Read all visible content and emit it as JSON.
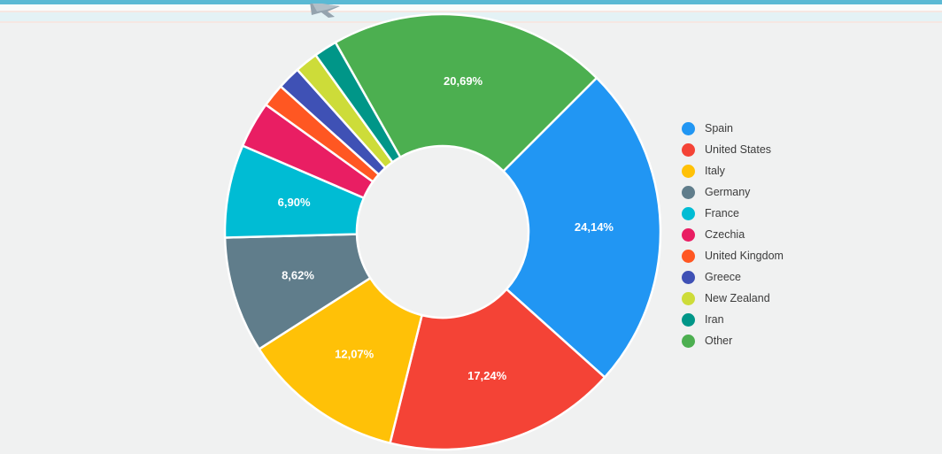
{
  "page": {
    "background": "#f0f1f1",
    "top_bar_color": "#5bb9d4"
  },
  "chart_data": {
    "type": "pie",
    "subtype": "donut",
    "title": "",
    "xlabel": "",
    "ylabel": "",
    "legend_position": "right",
    "start_angle_deg": 45,
    "label_decimal_separator": ",",
    "series": [
      {
        "label": "Spain",
        "percent": 24.14,
        "display": "24,14%",
        "color": "#2196F3"
      },
      {
        "label": "United States",
        "percent": 17.24,
        "display": "17,24%",
        "color": "#F44336"
      },
      {
        "label": "Italy",
        "percent": 12.07,
        "display": "12,07%",
        "color": "#FFC107"
      },
      {
        "label": "Germany",
        "percent": 8.62,
        "display": "8,62%",
        "color": "#607D8B"
      },
      {
        "label": "France",
        "percent": 6.9,
        "display": "6,90%",
        "color": "#00BCD4"
      },
      {
        "label": "Czechia",
        "percent": 3.45,
        "display": null,
        "color": "#E91E63"
      },
      {
        "label": "United Kingdom",
        "percent": 1.72,
        "display": null,
        "color": "#FF5722"
      },
      {
        "label": "Greece",
        "percent": 1.72,
        "display": null,
        "color": "#3F51B5"
      },
      {
        "label": "New Zealand",
        "percent": 1.72,
        "display": null,
        "color": "#CDDC39"
      },
      {
        "label": "Iran",
        "percent": 1.72,
        "display": null,
        "color": "#009688"
      },
      {
        "label": "Other",
        "percent": 20.69,
        "display": "20,69%",
        "color": "#4CAF50"
      }
    ]
  }
}
